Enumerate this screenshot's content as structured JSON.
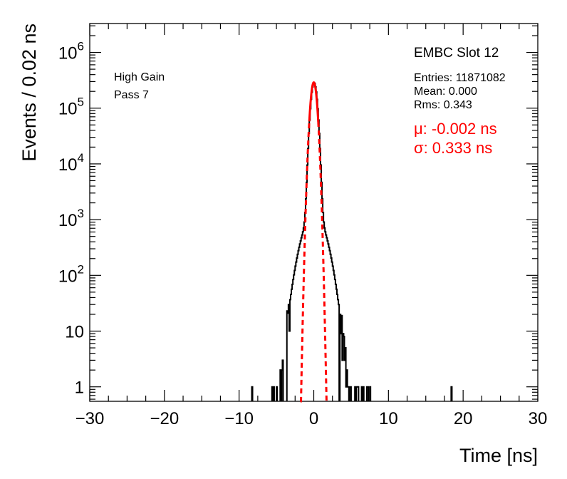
{
  "chart_data": {
    "type": "histogram",
    "xlabel": "Time [ns]",
    "ylabel": "Events / 0.02 ns",
    "xlim": [
      -30,
      30
    ],
    "ylim": [
      0.55,
      3300000
    ],
    "yscale": "log",
    "x_ticks": [
      -30,
      -20,
      -10,
      0,
      10,
      20,
      30
    ],
    "x_tick_labels": [
      "−30",
      "−20",
      "−10",
      "0",
      "10",
      "20",
      "30"
    ],
    "y_ticks": [
      {
        "value": 1,
        "base": "1",
        "exp": ""
      },
      {
        "value": 10,
        "base": "10",
        "exp": ""
      },
      {
        "value": 100,
        "base": "10",
        "exp": "2"
      },
      {
        "value": 1000,
        "base": "10",
        "exp": "3"
      },
      {
        "value": 10000,
        "base": "10",
        "exp": "4"
      },
      {
        "value": 100000,
        "base": "10",
        "exp": "5"
      },
      {
        "value": 1000000,
        "base": "10",
        "exp": "6"
      }
    ],
    "fit": {
      "mu": -0.002,
      "sigma": 0.333,
      "amplitude": 290000,
      "color": "#ff0000",
      "solid_range": [
        -0.6,
        0.6
      ],
      "dashed_range": [
        -1.8,
        1.8
      ]
    },
    "histogram": {
      "color": "#000000",
      "center": 0.0,
      "sigma": 0.34,
      "peak": 285000,
      "tail_sigma": 1.2,
      "tail_ratio": 0.0045,
      "noise_range": [
        -6.5,
        7.5
      ],
      "isolated_entries": [
        {
          "x": -8.3,
          "y": 1
        },
        {
          "x": 18.4,
          "y": 1
        }
      ]
    },
    "legend_placement": "top-right",
    "grid": false
  },
  "annotations": {
    "gain": "High Gain",
    "pass": "Pass 7",
    "slot": "EMBC Slot 12",
    "entries": "Entries: 11871082",
    "mean": "Mean: 0.000",
    "rms": "Rms: 0.343",
    "mu": "μ: -0.002 ns",
    "sigma": "σ: 0.333 ns"
  }
}
